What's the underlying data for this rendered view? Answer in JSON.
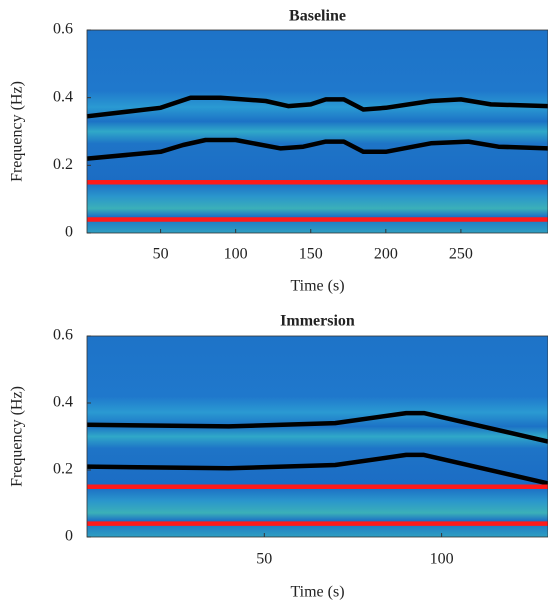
{
  "chart_data": [
    {
      "type": "line",
      "title": "Baseline",
      "x_label": "Time (s)",
      "y_label": "Frequency (Hz)",
      "xlim": [
        1,
        308
      ],
      "ylim": [
        0,
        0.6
      ],
      "xticks": [
        50,
        100,
        150,
        200,
        250
      ],
      "yticks": [
        0,
        0.2,
        0.4,
        0.6
      ],
      "series": [
        {
          "color": "#000000",
          "x": [
            1,
            50,
            70,
            90,
            120,
            135,
            150,
            160,
            172,
            185,
            200,
            230,
            250,
            270,
            308
          ],
          "values": [
            0.345,
            0.37,
            0.4,
            0.4,
            0.39,
            0.375,
            0.38,
            0.395,
            0.395,
            0.365,
            0.37,
            0.39,
            0.395,
            0.38,
            0.375
          ]
        },
        {
          "color": "#000000",
          "x": [
            1,
            50,
            65,
            80,
            100,
            130,
            145,
            160,
            172,
            185,
            200,
            230,
            255,
            275,
            308
          ],
          "values": [
            0.22,
            0.24,
            0.26,
            0.275,
            0.275,
            0.25,
            0.255,
            0.27,
            0.27,
            0.24,
            0.24,
            0.265,
            0.27,
            0.255,
            0.25
          ]
        },
        {
          "color": "#ff1a1a",
          "x": [
            1,
            308
          ],
          "values": [
            0.15,
            0.15
          ]
        },
        {
          "color": "#ff1a1a",
          "x": [
            1,
            308
          ],
          "values": [
            0.04,
            0.04
          ]
        }
      ]
    },
    {
      "type": "line",
      "title": "Immersion",
      "x_label": "Time (s)",
      "y_label": "Frequency (Hz)",
      "xlim": [
        0,
        130
      ],
      "ylim": [
        0,
        0.6
      ],
      "xticks": [
        50,
        100
      ],
      "yticks": [
        0,
        0.2,
        0.4,
        0.6
      ],
      "series": [
        {
          "color": "#000000",
          "x": [
            0,
            40,
            70,
            90,
            95,
            130
          ],
          "values": [
            0.335,
            0.33,
            0.34,
            0.37,
            0.37,
            0.285
          ]
        },
        {
          "color": "#000000",
          "x": [
            0,
            40,
            70,
            90,
            95,
            130
          ],
          "values": [
            0.21,
            0.205,
            0.215,
            0.245,
            0.245,
            0.16
          ]
        },
        {
          "color": "#ff1a1a",
          "x": [
            0,
            130
          ],
          "values": [
            0.15,
            0.15
          ]
        },
        {
          "color": "#ff1a1a",
          "x": [
            0,
            130
          ],
          "values": [
            0.04,
            0.04
          ]
        }
      ]
    }
  ]
}
